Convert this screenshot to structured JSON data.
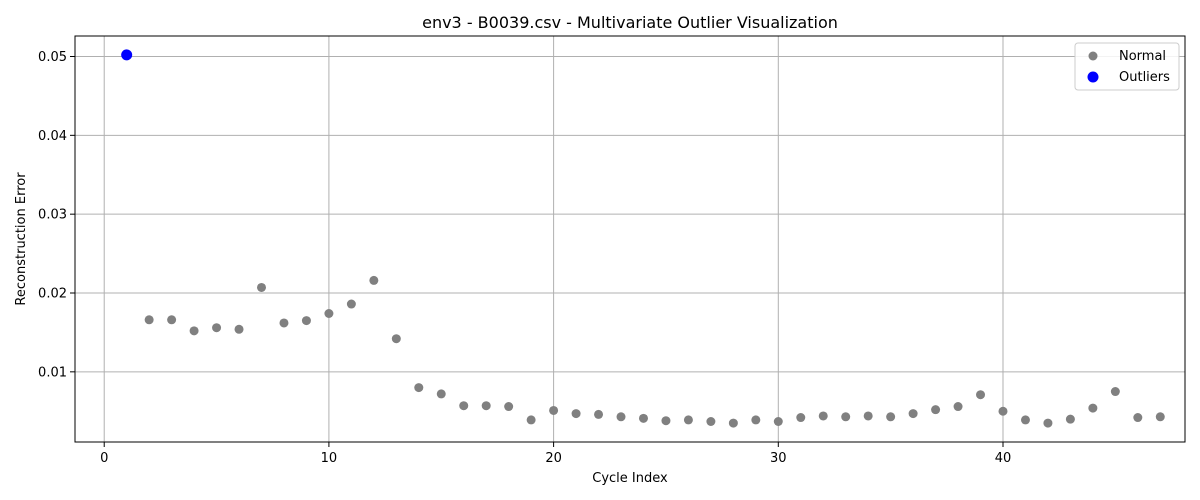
{
  "chart_data": {
    "type": "scatter",
    "title": "env3 - B0039.csv - Multivariate Outlier Visualization",
    "xlabel": "Cycle Index",
    "ylabel": "Reconstruction Error",
    "xlim": [
      -1.3,
      48.1
    ],
    "ylim": [
      0.0011,
      0.0526
    ],
    "x_ticks": [
      0,
      10,
      20,
      30,
      40
    ],
    "y_ticks": [
      0.01,
      0.02,
      0.03,
      0.04,
      0.05
    ],
    "x_tick_labels": [
      "0",
      "10",
      "20",
      "30",
      "40"
    ],
    "y_tick_labels": [
      "0.01",
      "0.02",
      "0.03",
      "0.04",
      "0.05"
    ],
    "grid": true,
    "legend_position": "top-right",
    "series": [
      {
        "name": "Normal",
        "color": "#808080",
        "points": [
          [
            2,
            0.0166
          ],
          [
            3,
            0.0166
          ],
          [
            4,
            0.0152
          ],
          [
            5,
            0.0156
          ],
          [
            6,
            0.0154
          ],
          [
            7,
            0.0207
          ],
          [
            8,
            0.0162
          ],
          [
            9,
            0.0165
          ],
          [
            10,
            0.0174
          ],
          [
            11,
            0.0186
          ],
          [
            12,
            0.0216
          ],
          [
            13,
            0.0142
          ],
          [
            14,
            0.008
          ],
          [
            15,
            0.0072
          ],
          [
            16,
            0.0057
          ],
          [
            17,
            0.0057
          ],
          [
            18,
            0.0056
          ],
          [
            19,
            0.0039
          ],
          [
            20,
            0.0051
          ],
          [
            21,
            0.0047
          ],
          [
            22,
            0.0046
          ],
          [
            23,
            0.0043
          ],
          [
            24,
            0.0041
          ],
          [
            25,
            0.0038
          ],
          [
            26,
            0.0039
          ],
          [
            27,
            0.0037
          ],
          [
            28,
            0.0035
          ],
          [
            29,
            0.0039
          ],
          [
            30,
            0.0037
          ],
          [
            31,
            0.0042
          ],
          [
            32,
            0.0044
          ],
          [
            33,
            0.0043
          ],
          [
            34,
            0.0044
          ],
          [
            35,
            0.0043
          ],
          [
            36,
            0.0047
          ],
          [
            37,
            0.0052
          ],
          [
            38,
            0.0056
          ],
          [
            39,
            0.0071
          ],
          [
            40,
            0.005
          ],
          [
            41,
            0.0039
          ],
          [
            42,
            0.0035
          ],
          [
            43,
            0.004
          ],
          [
            44,
            0.0054
          ],
          [
            45,
            0.0075
          ],
          [
            46,
            0.0042
          ],
          [
            47,
            0.0043
          ]
        ]
      },
      {
        "name": "Outliers",
        "color": "#0000ff",
        "points": [
          [
            1,
            0.0502
          ]
        ]
      }
    ]
  }
}
